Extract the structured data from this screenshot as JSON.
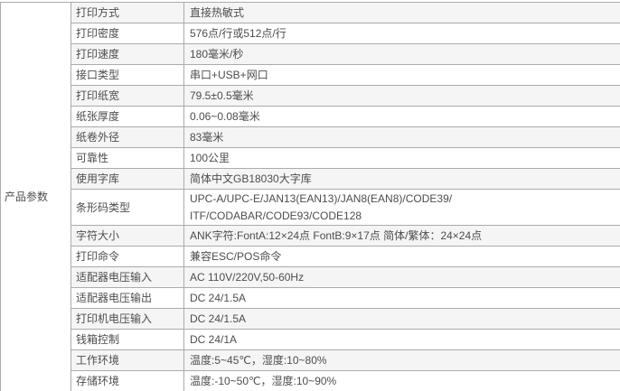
{
  "category": "产品参数",
  "rows": [
    {
      "label": "打印方式",
      "value": "直接热敏式"
    },
    {
      "label": "打印密度",
      "value": "576点/行或512点/行"
    },
    {
      "label": "打印速度",
      "value": "180毫米/秒"
    },
    {
      "label": "接口类型",
      "value": "串口+USB+网口"
    },
    {
      "label": "打印纸宽",
      "value": "79.5±0.5毫米"
    },
    {
      "label": "纸张厚度",
      "value": "0.06~0.08毫米"
    },
    {
      "label": "纸卷外径",
      "value": "83毫米"
    },
    {
      "label": "可靠性",
      "value": "100公里"
    },
    {
      "label": "使用字库",
      "value": "简体中文GB18030大字库"
    },
    {
      "label": "条形码类型",
      "value": "UPC-A/UPC-E/JAN13(EAN13)/JAN8(EAN8)/CODE39/",
      "value2": "ITF/CODABAR/CODE93/CODE128"
    },
    {
      "label": "字符大小",
      "value": "ANK字符:FontA:12×24点 FontB:9×17点 简体/繁体：24×24点"
    },
    {
      "label": "打印命令",
      "value": "兼容ESC/POS命令"
    },
    {
      "label": "适配器电压输入",
      "value": "AC 110V/220V,50-60Hz"
    },
    {
      "label": "适配器电压输出",
      "value": "DC 24/1.5A"
    },
    {
      "label": "打印机电压输入",
      "value": "DC 24/1.5A"
    },
    {
      "label": "钱箱控制",
      "value": "DC 24/1A"
    },
    {
      "label": "工作环境",
      "value": "温度:5~45℃，湿度:10~80%"
    },
    {
      "label": "存储环境",
      "value": "温度:-10~50℃，湿度:10~90%"
    }
  ],
  "colors": {
    "stripe": "#f5f5f5",
    "border": "#ababab",
    "text": "#4d4d4d",
    "background": "#ffffff"
  }
}
